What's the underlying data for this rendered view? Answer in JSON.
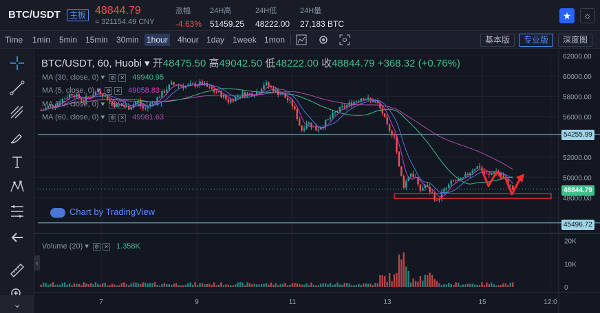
{
  "header": {
    "pair": "BTC/USDT",
    "badge": "主板",
    "last_price": "48844.79",
    "cny_price": "≈ 321154.49 CNY",
    "stats": [
      {
        "label": "涨幅",
        "value": "-4.63%",
        "color": "#f0524f"
      },
      {
        "label": "24H高",
        "value": "51459.25"
      },
      {
        "label": "24H低",
        "value": "48222.00"
      },
      {
        "label": "24H量",
        "value": "27,183 BTC"
      }
    ],
    "star_icon": "star-icon",
    "theme_icon": "sun-icon"
  },
  "toolbar": {
    "timeframes": [
      "Time",
      "1min",
      "5min",
      "15min",
      "30min",
      "1hour",
      "4hour",
      "1day",
      "1week",
      "1mon"
    ],
    "active_timeframe": "1hour",
    "tools": [
      "indicator-icon",
      "settings-icon",
      "screenshot-icon"
    ],
    "views": [
      "基本版",
      "专业版",
      "深度图"
    ],
    "active_view": "专业版"
  },
  "left_tools": [
    "crosshair-icon",
    "trend-line-icon",
    "fib-tool-icon",
    "brush-icon",
    "text-tool-icon",
    "pattern-tool-icon",
    "fib-retracement-icon",
    "back-arrow-icon",
    "ruler-icon",
    "zoom-icon"
  ],
  "legend": {
    "symbol": "BTC/USDT, 60, Huobi",
    "open_label": "开",
    "open": "48475.50",
    "high_label": "高",
    "high": "49042.50",
    "low_label": "低",
    "low": "48222.00",
    "close_label": "收",
    "close": "48844.79",
    "change": "+368.32 (+0.76%)"
  },
  "indicators": [
    {
      "name": "MA (30, close, 0)",
      "value": "49940.95",
      "color": "#3fbf8a"
    },
    {
      "name": "MA (5, close, 0)",
      "value": "49058.83",
      "color": "#d63cc4"
    },
    {
      "name": "MA (10, close, 0)",
      "value": "49511.41",
      "color": "#4a78d8"
    },
    {
      "name": "MA (60, close, 0)",
      "value": "49981.63",
      "color": "#b04aa8"
    }
  ],
  "watermark": "Chart by TradingView",
  "volume_legend": {
    "name": "Volume (20)",
    "value": "1.358K"
  },
  "price_tags": [
    {
      "label": "54255.99",
      "kind": "line"
    },
    {
      "label": "48844.79",
      "kind": "last"
    },
    {
      "label": "45496.72",
      "kind": "line"
    }
  ],
  "colors": {
    "up": "#26a69a",
    "down": "#ef5350",
    "accent": "#2962ff",
    "annotation": "#ff2a2a"
  },
  "chart_data": {
    "type": "candlestick",
    "title": "BTC/USDT, 60, Huobi",
    "y_ticks": [
      "62000.00",
      "60000.00",
      "58000.00",
      "56000.00",
      "52000.00",
      "50000.00",
      "48000.00"
    ],
    "ylim": [
      44800,
      62300
    ],
    "x_ticks": [
      "7",
      "9",
      "11",
      "13",
      "15",
      "12:0"
    ],
    "volume_ticks": [
      "20K",
      "10K",
      "0"
    ],
    "volume_ylim": [
      0,
      22000
    ],
    "horizontal_lines": [
      54255.99,
      45496.72
    ],
    "last_price": 48844.79,
    "annotation_box": [
      47900,
      48400
    ],
    "ma_series": [
      {
        "name": "MA 30",
        "color": "#3fbf8a"
      },
      {
        "name": "MA 5",
        "color": "#d63cc4"
      },
      {
        "name": "MA 10",
        "color": "#4a78d8"
      },
      {
        "name": "MA 60",
        "color": "#b04aa8"
      }
    ],
    "price_path": [
      [
        0,
        56600
      ],
      [
        5,
        57300
      ],
      [
        10,
        58300
      ],
      [
        14,
        57600
      ],
      [
        19,
        58600
      ],
      [
        24,
        57200
      ],
      [
        29,
        56900
      ],
      [
        32,
        57500
      ],
      [
        34,
        56700
      ],
      [
        38,
        57700
      ],
      [
        43,
        59200
      ],
      [
        48,
        59000
      ],
      [
        53,
        59300
      ],
      [
        56,
        58700
      ],
      [
        59,
        58300
      ],
      [
        62,
        57500
      ],
      [
        66,
        58200
      ],
      [
        71,
        58300
      ],
      [
        74,
        59300
      ],
      [
        77,
        58600
      ],
      [
        80,
        58100
      ],
      [
        83,
        57200
      ],
      [
        85,
        55700
      ],
      [
        86,
        54600
      ],
      [
        88,
        55500
      ],
      [
        91,
        54700
      ],
      [
        94,
        55400
      ],
      [
        98,
        56600
      ],
      [
        103,
        57400
      ],
      [
        106,
        57900
      ],
      [
        111,
        57400
      ],
      [
        113,
        56300
      ],
      [
        115,
        54500
      ],
      [
        117,
        54200
      ],
      [
        118,
        51400
      ],
      [
        120,
        49100
      ],
      [
        122,
        50500
      ],
      [
        124,
        49900
      ],
      [
        125,
        48600
      ],
      [
        127,
        49200
      ],
      [
        130,
        48100
      ],
      [
        131,
        47500
      ],
      [
        132,
        48300
      ],
      [
        134,
        48900
      ],
      [
        136,
        49600
      ],
      [
        139,
        49700
      ],
      [
        141,
        50300
      ],
      [
        143,
        50900
      ],
      [
        145,
        51100
      ],
      [
        146,
        50500
      ],
      [
        148,
        50100
      ],
      [
        150,
        50700
      ],
      [
        152,
        50200
      ],
      [
        154,
        49500
      ],
      [
        156,
        48800
      ]
    ],
    "annotations": [
      "box below price",
      "red zigzag arrows"
    ]
  }
}
